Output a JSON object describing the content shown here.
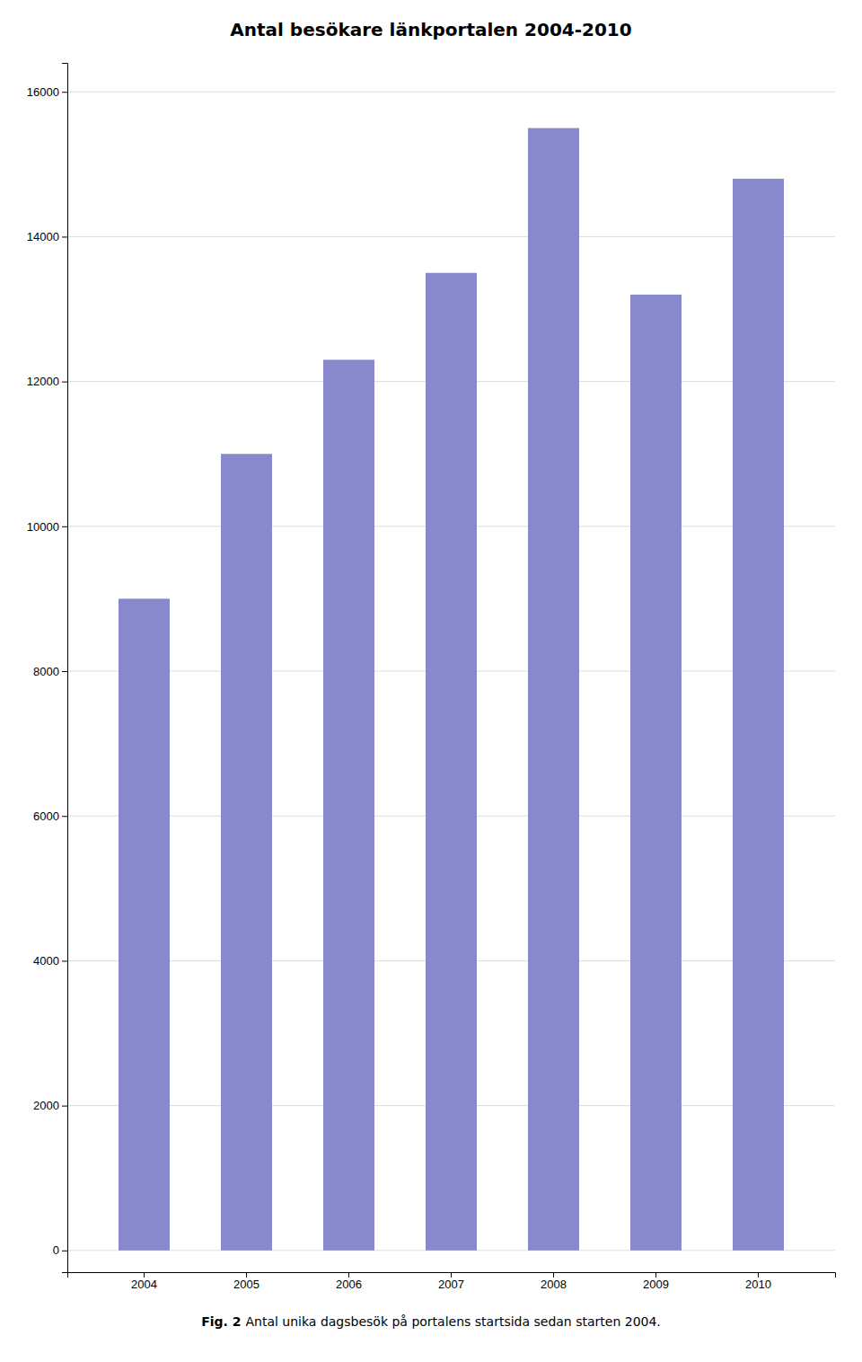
{
  "chart_data": {
    "type": "bar",
    "title": "Antal besökare länkportalen 2004-2010",
    "categories": [
      "2004",
      "2005",
      "2006",
      "2007",
      "2008",
      "2009",
      "2010"
    ],
    "values": [
      9000,
      11000,
      12300,
      13500,
      15500,
      13200,
      14800
    ],
    "color": "#8888CC",
    "ylim": [
      -300,
      16400
    ],
    "yticks": [
      0,
      2000,
      4000,
      6000,
      8000,
      10000,
      12000,
      14000,
      16000
    ],
    "grid": true,
    "annotations": [
      "Fig. 2",
      "Antal unika dagsbesök på portalens startsida sedan starten 2004."
    ]
  }
}
